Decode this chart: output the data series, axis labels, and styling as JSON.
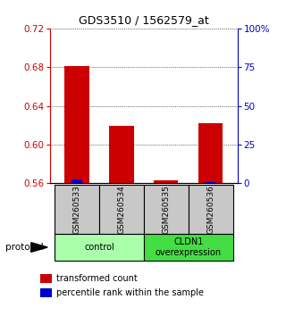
{
  "title": "GDS3510 / 1562579_at",
  "samples": [
    "GSM260533",
    "GSM260534",
    "GSM260535",
    "GSM260536"
  ],
  "transformed_counts": [
    0.681,
    0.619,
    0.5635,
    0.622
  ],
  "percentile_ranks": [
    3.5,
    1.5,
    1.5,
    2.0
  ],
  "baseline": 0.558,
  "ylim_left": [
    0.56,
    0.72
  ],
  "ylim_right": [
    0,
    100
  ],
  "yticks_left": [
    0.56,
    0.6,
    0.64,
    0.68,
    0.72
  ],
  "yticks_right": [
    0,
    25,
    50,
    75,
    100
  ],
  "bar_width": 0.55,
  "blue_bar_width": 0.25,
  "red_color": "#cc0000",
  "blue_color": "#0000cc",
  "groups": [
    {
      "label": "control",
      "samples": [
        0,
        1
      ],
      "color": "#aaffaa"
    },
    {
      "label": "CLDN1\noverexpression",
      "samples": [
        2,
        3
      ],
      "color": "#44dd44"
    }
  ],
  "legend_items": [
    {
      "color": "#cc0000",
      "label": "transformed count"
    },
    {
      "color": "#0000cc",
      "label": "percentile rank within the sample"
    }
  ],
  "protocol_label": "protocol",
  "sample_box_color": "#c8c8c8",
  "left_axis_color": "#cc0000",
  "right_axis_color": "#0000cc"
}
